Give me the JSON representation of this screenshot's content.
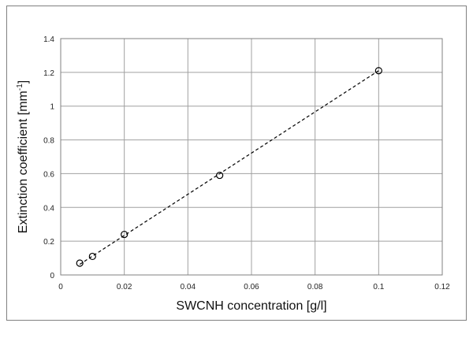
{
  "chart_data": {
    "type": "scatter",
    "xlabel": "SWCNH concentration [g/l]",
    "ylabel_prefix": "Extinction coefficient [mm",
    "ylabel_sup": "-1",
    "ylabel_suffix": "]",
    "xlim": [
      0,
      0.12
    ],
    "ylim": [
      0,
      1.4
    ],
    "x_ticks": [
      0,
      0.02,
      0.04,
      0.06,
      0.08,
      0.1,
      0.12
    ],
    "x_tick_labels": [
      "0",
      "0.02",
      "0.04",
      "0.06",
      "0.08",
      "0.1",
      "0.12"
    ],
    "y_ticks": [
      0,
      0.2,
      0.4,
      0.6,
      0.8,
      1,
      1.2,
      1.4
    ],
    "y_tick_labels": [
      "0",
      "0.2",
      "0.4",
      "0.6",
      "0.8",
      "1",
      "1.2",
      "1.4"
    ],
    "grid": true,
    "legend": "none",
    "series": [
      {
        "marker": "open-circle",
        "x": [
          0.006,
          0.01,
          0.02,
          0.05,
          0.1
        ],
        "y": [
          0.07,
          0.11,
          0.24,
          0.59,
          1.21
        ]
      }
    ],
    "trendline": {
      "style": "dashed",
      "x": [
        0.006,
        0.1
      ],
      "y": [
        0.063,
        1.21
      ]
    }
  },
  "colors": {
    "grid": "#a0a0a0",
    "axis": "#808080",
    "marker": "#000000",
    "trend": "#000000"
  }
}
